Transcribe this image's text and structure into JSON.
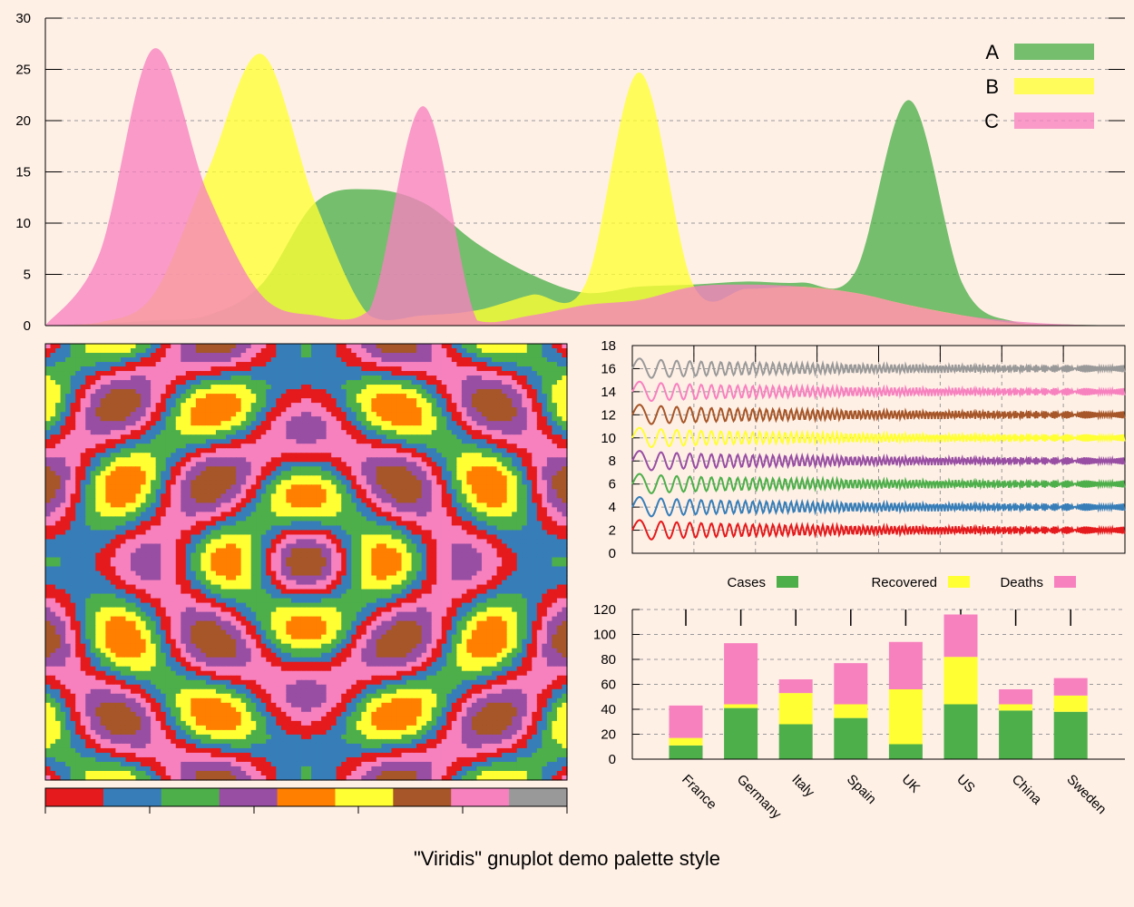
{
  "page": {
    "title": "\"Viridis\" gnuplot demo palette style"
  },
  "palette": [
    "#e41a1c",
    "#377eb8",
    "#4daf4a",
    "#984ea3",
    "#ff7f00",
    "#ffff33",
    "#a65628",
    "#f781bf",
    "#999999"
  ],
  "chart_data": [
    {
      "type": "area",
      "title": "",
      "xlabel": "",
      "ylabel": "",
      "xlim": [
        0,
        100
      ],
      "ylim": [
        0,
        30
      ],
      "yticks": [
        0,
        5,
        10,
        15,
        20,
        25,
        30
      ],
      "grid": true,
      "legend": "top-right",
      "x": [
        0,
        5,
        10,
        15,
        20,
        25,
        30,
        35,
        40,
        45,
        50,
        55,
        60,
        65,
        70,
        75,
        80,
        85,
        90,
        95,
        100
      ],
      "series": [
        {
          "name": "A",
          "color": "#4daf4a",
          "values": [
            0,
            0.2,
            0.5,
            1,
            4,
            12,
            13.3,
            12,
            8,
            5,
            3.2,
            3.8,
            4,
            4.3,
            4.2,
            5.2,
            22,
            4,
            0.3,
            0.1,
            0
          ]
        },
        {
          "name": "B",
          "color": "#ffff33",
          "values": [
            0,
            0.3,
            3,
            15,
            26.5,
            12,
            1,
            1,
            1.5,
            3,
            4,
            24.7,
            4,
            3.6,
            3.8,
            3.2,
            2,
            1,
            0.2,
            0,
            0
          ]
        },
        {
          "name": "C",
          "color": "#f781bf",
          "values": [
            0,
            7,
            27,
            13,
            3,
            1,
            1.5,
            21.4,
            0.5,
            1,
            2,
            2.5,
            3.8,
            4,
            3.8,
            3.2,
            2,
            1,
            0.4,
            0.1,
            0
          ]
        }
      ]
    },
    {
      "type": "heatmap",
      "title": "",
      "description_levels": 9,
      "colorbar_ticks": 5
    },
    {
      "type": "line",
      "title": "",
      "xlabel": "",
      "ylabel": "",
      "ylim": [
        0,
        18
      ],
      "yticks": [
        0,
        2,
        4,
        6,
        8,
        10,
        12,
        14,
        16,
        18
      ],
      "grid": true,
      "series": [
        {
          "offset": 2,
          "color": "#e41a1c"
        },
        {
          "offset": 4,
          "color": "#377eb8"
        },
        {
          "offset": 6,
          "color": "#4daf4a"
        },
        {
          "offset": 8,
          "color": "#984ea3"
        },
        {
          "offset": 10,
          "color": "#ffff33"
        },
        {
          "offset": 12,
          "color": "#a65628"
        },
        {
          "offset": 14,
          "color": "#f781bf"
        },
        {
          "offset": 16,
          "color": "#999999"
        }
      ]
    },
    {
      "type": "bar",
      "stacked": true,
      "title": "",
      "xlabel": "",
      "ylabel": "",
      "ylim": [
        0,
        120
      ],
      "yticks": [
        0,
        20,
        40,
        60,
        80,
        100,
        120
      ],
      "grid": true,
      "legend": "top",
      "categories": [
        "France",
        "Germany",
        "Italy",
        "Spain",
        "UK",
        "US",
        "China",
        "Sweden"
      ],
      "series": [
        {
          "name": "Cases",
          "color": "#4daf4a",
          "values": [
            11,
            41,
            28,
            33,
            12,
            44,
            39,
            38
          ]
        },
        {
          "name": "Recovered",
          "color": "#ffff33",
          "values": [
            6,
            3,
            25,
            11,
            44,
            38,
            5,
            13
          ]
        },
        {
          "name": "Deaths",
          "color": "#f781bf",
          "values": [
            26,
            49,
            11,
            33,
            38,
            34,
            12,
            14
          ]
        }
      ]
    }
  ]
}
